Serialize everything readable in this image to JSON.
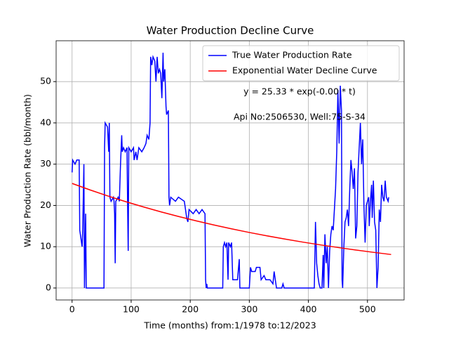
{
  "chart_data": {
    "type": "line",
    "title": "Water Production Decline Curve",
    "xlabel": "Time (months) from:1/1978 to:12/2023",
    "ylabel": "Water Production Rate (bbl/month)",
    "annotations": [
      "y = 25.33 * exp(-0.00 * t)",
      "Api No:2506530, Well:75-S-34"
    ],
    "xlim": [
      -27,
      562
    ],
    "ylim": [
      -2.9,
      59.9
    ],
    "xticks": [
      0,
      100,
      200,
      300,
      400,
      500
    ],
    "yticks": [
      0,
      10,
      20,
      30,
      40,
      50
    ],
    "grid": true,
    "legend": "upper right",
    "series": [
      {
        "name": "True Water Production Rate",
        "color": "#0000ff",
        "x": [
          0,
          1,
          5,
          8,
          12,
          13,
          15,
          17,
          18,
          20,
          21,
          23,
          24,
          30,
          40,
          54,
          55,
          56,
          60,
          62,
          63,
          64,
          66,
          70,
          71,
          72,
          73,
          74,
          78,
          80,
          82,
          84,
          85,
          87,
          90,
          93,
          94,
          95,
          96,
          100,
          104,
          105,
          108,
          110,
          113,
          118,
          122,
          125,
          127,
          130,
          132,
          133,
          135,
          137,
          140,
          142,
          144,
          146,
          148,
          150,
          152,
          154,
          155,
          157,
          159,
          160,
          163,
          164,
          165,
          167,
          175,
          180,
          190,
          192,
          194,
          196,
          198,
          205,
          210,
          215,
          220,
          225,
          226,
          227,
          228,
          229,
          240,
          255,
          256,
          258,
          260,
          262,
          264,
          265,
          268,
          270,
          272,
          280,
          283,
          284,
          300,
          302,
          304,
          310,
          312,
          318,
          320,
          325,
          328,
          335,
          340,
          342,
          344,
          346,
          355,
          357,
          359,
          370,
          390,
          410,
          412,
          414,
          416,
          418,
          420,
          423,
          425,
          426,
          428,
          430,
          432,
          434,
          436,
          438,
          440,
          442,
          444,
          446,
          448,
          450,
          452,
          454,
          456,
          457,
          458,
          460,
          462,
          464,
          466,
          468,
          470,
          472,
          474,
          476,
          478,
          480,
          482,
          484,
          486,
          488,
          490,
          492,
          494,
          496,
          498,
          500,
          502,
          503,
          505,
          507,
          508,
          510,
          512,
          514,
          515,
          516,
          518,
          520,
          522,
          524,
          526,
          528,
          530,
          532,
          535,
          536
        ],
        "values": [
          28,
          31,
          30,
          31,
          31,
          14,
          12,
          10,
          14,
          30,
          0,
          18,
          0,
          0,
          0,
          0,
          34,
          40,
          39,
          33,
          40,
          22,
          21,
          22,
          21,
          18,
          6,
          21,
          22,
          21,
          30,
          37,
          33,
          34,
          33,
          34,
          20,
          9,
          34,
          33,
          34,
          31,
          33,
          31,
          34,
          33,
          34,
          35,
          37,
          36,
          40,
          56,
          54,
          56,
          55,
          50,
          56,
          52,
          53,
          52,
          46,
          57,
          50,
          53,
          44,
          42,
          43,
          22,
          20,
          22,
          21,
          22,
          21,
          19,
          17,
          16,
          19,
          18,
          19,
          18,
          19,
          18,
          2,
          0,
          1,
          0,
          0,
          0,
          10,
          11,
          10,
          11,
          2,
          11,
          10,
          11,
          2,
          2,
          7,
          0,
          0,
          5,
          4,
          4,
          5,
          5,
          2,
          3,
          2,
          2,
          1,
          4,
          2,
          0,
          0,
          1,
          0,
          0,
          0,
          0,
          16,
          6,
          3,
          1,
          0,
          0,
          8,
          0,
          13,
          6,
          10,
          0,
          9,
          13,
          15,
          14,
          19,
          24,
          33,
          48,
          35,
          49,
          43,
          2,
          0,
          10,
          16,
          17,
          19,
          15,
          24,
          31,
          28,
          24,
          29,
          12,
          15,
          28,
          34,
          40,
          30,
          36,
          20,
          11,
          20,
          21,
          22,
          15,
          21,
          25,
          17,
          26,
          16,
          14,
          7,
          0,
          5,
          19,
          16,
          25,
          22,
          21,
          26,
          22,
          21,
          22
        ]
      },
      {
        "name": "Exponential Water Decline Curve",
        "color": "#ff0000",
        "x": [
          0,
          30,
          60,
          90,
          120,
          150,
          180,
          210,
          240,
          270,
          300,
          330,
          360,
          390,
          420,
          450,
          480,
          510,
          540
        ],
        "values": [
          25.33,
          23.78,
          22.32,
          20.95,
          19.67,
          18.46,
          17.33,
          16.27,
          15.27,
          14.33,
          13.45,
          12.63,
          11.86,
          11.13,
          10.45,
          9.81,
          9.2,
          8.64,
          8.11
        ]
      }
    ]
  }
}
